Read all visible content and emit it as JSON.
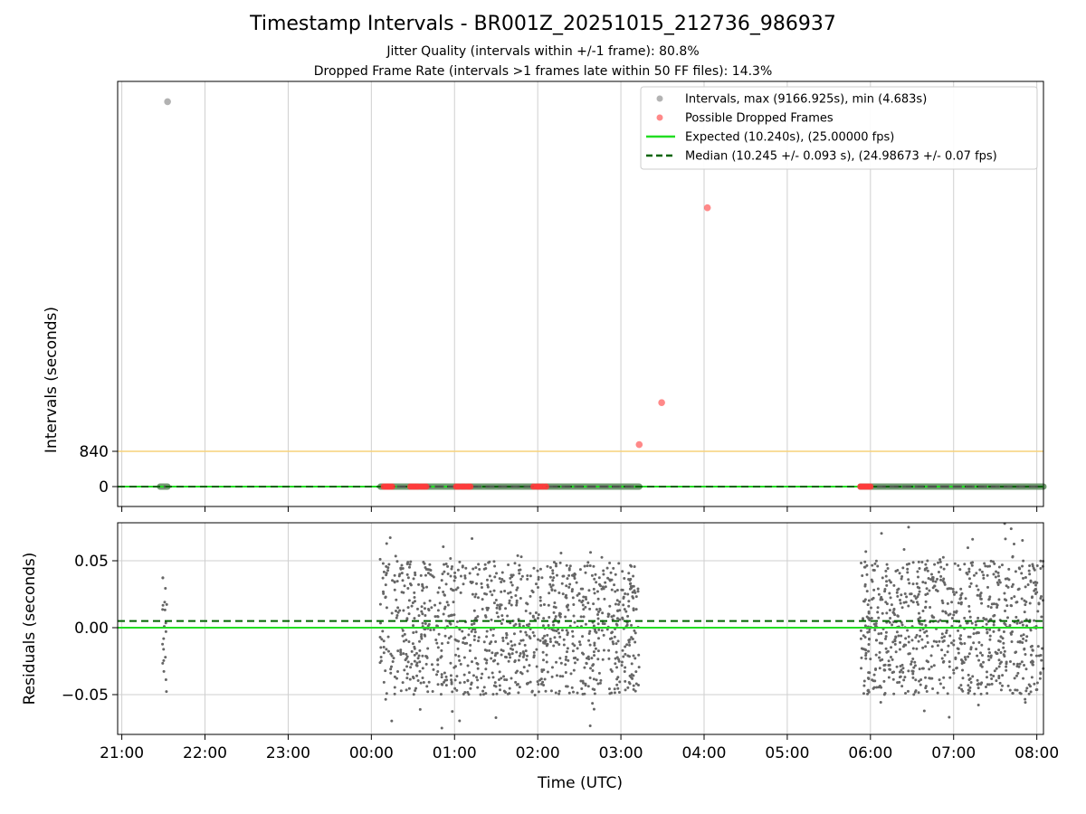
{
  "title": "Timestamp Intervals - BR001Z_20251015_212736_986937",
  "subtitle_1": "Jitter Quality (intervals within +/-1 frame): 80.8%",
  "subtitle_2": "Dropped Frame Rate (intervals >1 frames late within 50 FF files): 14.3%",
  "colors": {
    "intervals": "#a0a0a0",
    "intervals_dense": "#5a8a5a",
    "dropped": "#ff3b3b",
    "expected": "#22dd22",
    "median": "#006400",
    "threshold": "#f7d27a",
    "residual_points": "#666666",
    "grid": "#cfcfcf"
  },
  "chart_data": [
    {
      "type": "scatter",
      "panel": "top",
      "ylabel": "Intervals (seconds)",
      "y_ticks": [
        "840",
        "0"
      ],
      "x_ticks": [
        "21:00",
        "22:00",
        "23:00",
        "00:00",
        "01:00",
        "02:00",
        "03:00",
        "04:00",
        "05:00",
        "06:00",
        "07:00",
        "08:00"
      ],
      "grid": "vertical",
      "legend_placement": "top-right",
      "legend": [
        "Intervals, max (9166.925s), min (4.683s)",
        "Possible Dropped Frames",
        "Expected (10.240s), (25.00000 fps)",
        "Median (10.245 +/- 0.093 s), (24.98673 +/- 0.07 fps)"
      ],
      "threshold_line": 840,
      "expected_value": 10.24,
      "median_value": 10.245,
      "x_unit": "hours since 21:00 UTC",
      "interval_segments": [
        {
          "x_start": 0.46,
          "x_end": 0.55
        },
        {
          "x_start": 3.11,
          "x_end": 6.22
        },
        {
          "x_start": 8.88,
          "x_end": 11.08
        }
      ],
      "outliers": [
        {
          "x": 0.55,
          "y": 9166.9,
          "series": "Intervals"
        },
        {
          "x": 6.22,
          "y": 1000,
          "series": "Possible Dropped Frames"
        },
        {
          "x": 6.49,
          "y": 2000,
          "series": "Possible Dropped Frames"
        },
        {
          "x": 7.04,
          "y": 6640,
          "series": "Possible Dropped Frames"
        }
      ],
      "dropped_near_zero": [
        3.15,
        3.18,
        3.2,
        3.22,
        3.25,
        3.47,
        3.5,
        3.53,
        3.56,
        3.6,
        3.63,
        3.66,
        4.02,
        4.05,
        4.09,
        4.12,
        4.16,
        4.19,
        4.95,
        4.99,
        5.02,
        5.06,
        5.1,
        8.88,
        8.91,
        8.94,
        8.97,
        9.0
      ],
      "ylim": [
        -480,
        9600
      ]
    },
    {
      "type": "scatter",
      "panel": "bottom",
      "ylabel": "Residuals (seconds)",
      "xlabel": "Time (UTC)",
      "y_ticks": [
        "0.05",
        "0.00",
        "−0.05"
      ],
      "x_ticks": [
        "21:00",
        "22:00",
        "23:00",
        "00:00",
        "01:00",
        "02:00",
        "03:00",
        "04:00",
        "05:00",
        "06:00",
        "07:00",
        "08:00"
      ],
      "grid": "both",
      "expected_residual": 0.0,
      "median_residual": 0.005,
      "ylim": [
        -0.08,
        0.08
      ],
      "xlim": [
        -0.05,
        11.08
      ],
      "residual_clusters": [
        {
          "x_start": 0.48,
          "x_end": 0.54,
          "count": 20
        },
        {
          "x_start": 3.1,
          "x_end": 6.22,
          "count": 1100
        },
        {
          "x_start": 8.88,
          "x_end": 11.08,
          "count": 850
        }
      ]
    }
  ]
}
